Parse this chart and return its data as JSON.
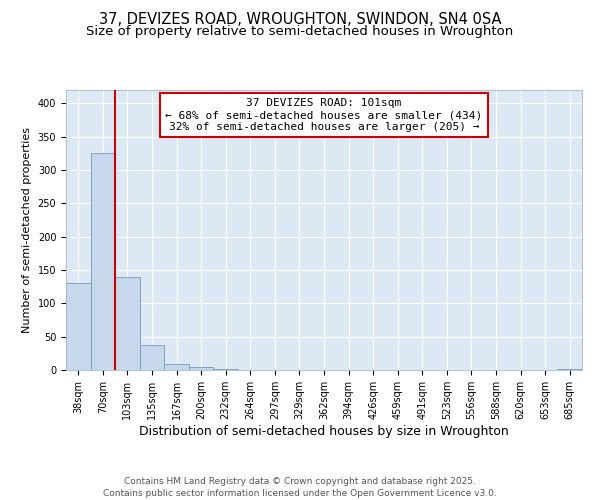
{
  "title1": "37, DEVIZES ROAD, WROUGHTON, SWINDON, SN4 0SA",
  "title2": "Size of property relative to semi-detached houses in Wroughton",
  "xlabel": "Distribution of semi-detached houses by size in Wroughton",
  "ylabel": "Number of semi-detached properties",
  "categories": [
    "38sqm",
    "70sqm",
    "103sqm",
    "135sqm",
    "167sqm",
    "200sqm",
    "232sqm",
    "264sqm",
    "297sqm",
    "329sqm",
    "362sqm",
    "394sqm",
    "426sqm",
    "459sqm",
    "491sqm",
    "523sqm",
    "556sqm",
    "588sqm",
    "620sqm",
    "653sqm",
    "685sqm"
  ],
  "values": [
    130,
    325,
    140,
    37,
    9,
    4,
    2,
    0,
    0,
    0,
    0,
    0,
    0,
    0,
    0,
    0,
    0,
    0,
    0,
    0,
    2
  ],
  "bar_color": "#c8d8ec",
  "bar_edge_color": "#7799bb",
  "bar_linewidth": 0.6,
  "vline_x_index": 1.5,
  "vline_color": "#cc0000",
  "annotation_text": "37 DEVIZES ROAD: 101sqm\n← 68% of semi-detached houses are smaller (434)\n32% of semi-detached houses are larger (205) →",
  "annotation_box_color": "#cc0000",
  "ylim": [
    0,
    420
  ],
  "yticks": [
    0,
    50,
    100,
    150,
    200,
    250,
    300,
    350,
    400
  ],
  "footer1": "Contains HM Land Registry data © Crown copyright and database right 2025.",
  "footer2": "Contains public sector information licensed under the Open Government Licence v3.0.",
  "bg_color": "#ffffff",
  "plot_bg_color": "#dce8f4",
  "title1_fontsize": 10.5,
  "title2_fontsize": 9.5,
  "xlabel_fontsize": 9,
  "ylabel_fontsize": 8,
  "tick_fontsize": 7,
  "annotation_fontsize": 8,
  "footer_fontsize": 6.5
}
